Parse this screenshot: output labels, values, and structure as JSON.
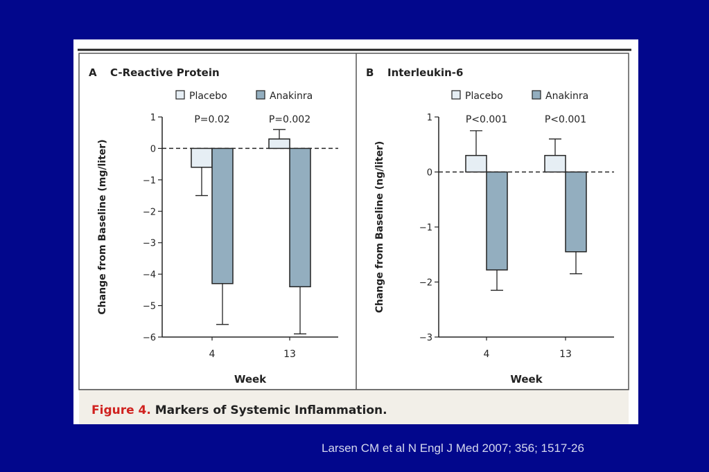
{
  "colors": {
    "background": "#02078c",
    "figure_bg": "#ffffff",
    "caption_bg": "#f2efe8",
    "placebo": "#e6eef4",
    "anakinra": "#93aebf",
    "figure_label_red": "#d0221f"
  },
  "figure": {
    "caption_prefix": "Figure 4.",
    "caption_text": " Markers of Systemic Inflammation."
  },
  "citation": "Larsen CM et al N Engl J Med 2007; 356; 1517-26",
  "chart_data": [
    {
      "type": "bar",
      "panel_letter": "A",
      "title": "C-Reactive Protein",
      "xlabel": "Week",
      "ylabel": "Change from Baseline (mg/liter)",
      "ylim": [
        -6,
        1
      ],
      "yticks": [
        "1",
        "0",
        "−1",
        "−2",
        "−3",
        "−4",
        "−5",
        "−6"
      ],
      "categories": [
        "4",
        "13"
      ],
      "legend": [
        "Placebo",
        "Anakinra"
      ],
      "legend_position": "top-right",
      "series": [
        {
          "name": "Placebo",
          "values": [
            -0.6,
            0.3
          ],
          "error_ends": [
            -1.5,
            0.6
          ]
        },
        {
          "name": "Anakinra",
          "values": [
            -4.3,
            -4.4
          ],
          "error_ends": [
            -5.6,
            -5.9
          ]
        }
      ],
      "annotations": [
        "P=0.02",
        "P=0.002"
      ]
    },
    {
      "type": "bar",
      "panel_letter": "B",
      "title": "Interleukin-6",
      "xlabel": "Week",
      "ylabel": "Change from Baseline (ng/liter)",
      "ylim": [
        -3,
        1
      ],
      "yticks": [
        "1",
        "0",
        "−1",
        "−2",
        "−3"
      ],
      "categories": [
        "4",
        "13"
      ],
      "legend": [
        "Placebo",
        "Anakinra"
      ],
      "legend_position": "top-right",
      "series": [
        {
          "name": "Placebo",
          "values": [
            0.3,
            0.3
          ],
          "error_ends": [
            0.75,
            0.6
          ]
        },
        {
          "name": "Anakinra",
          "values": [
            -1.78,
            -1.45
          ],
          "error_ends": [
            -2.15,
            -1.85
          ]
        }
      ],
      "annotations": [
        "P<0.001",
        "P<0.001"
      ]
    }
  ]
}
